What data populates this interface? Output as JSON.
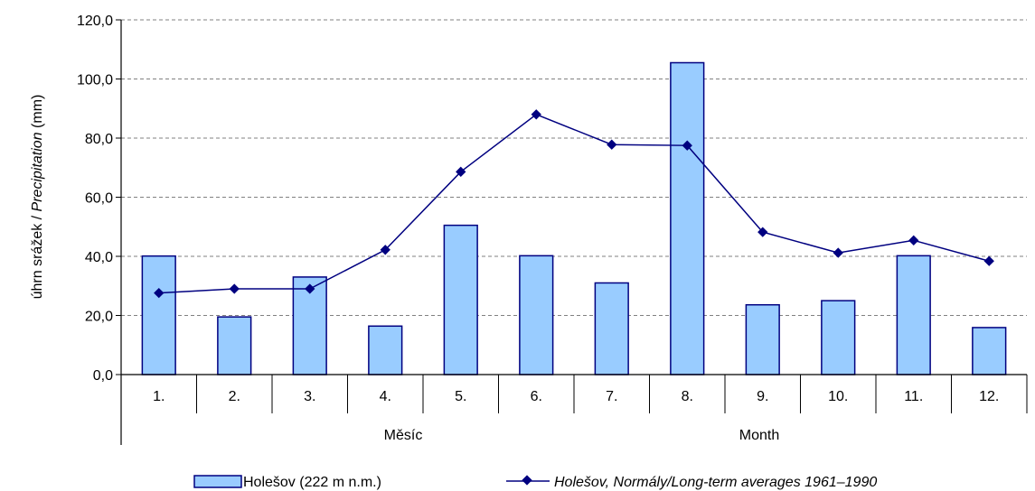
{
  "chart_data": {
    "type": "bar",
    "categories": [
      "1.",
      "2.",
      "3.",
      "4.",
      "5.",
      "6.",
      "7.",
      "8.",
      "9.",
      "10.",
      "11.",
      "12."
    ],
    "series": [
      {
        "name": "Holešov (222 m n.m.)",
        "type": "bar",
        "color": "#99ccff",
        "edge_color": "#000080",
        "values": [
          40.1,
          19.5,
          33.0,
          16.4,
          50.5,
          40.2,
          31.0,
          105.5,
          23.6,
          25.0,
          40.2,
          15.9
        ]
      },
      {
        "name": "Holešov, Normály/Long-term averages 1961–1990",
        "type": "line",
        "color": "#000080",
        "marker": "diamond",
        "values": [
          27.6,
          29.0,
          29.0,
          42.2,
          68.6,
          88.0,
          77.8,
          77.5,
          48.2,
          41.2,
          45.4,
          38.4
        ]
      }
    ],
    "yticks": [
      "0,0",
      "20,0",
      "40,0",
      "60,0",
      "80,0",
      "100,0",
      "120,0"
    ],
    "ylim": [
      0,
      120
    ],
    "ylabel_plain": "úhrn srážek / ",
    "ylabel_italic": "Precipitation",
    "ylabel_unit": " (mm)",
    "xlabel_cz": "Měsíc",
    "xlabel_en": "Month",
    "legend_series1": "Holešov (222 m n.m.)",
    "legend_series2": "Holešov, Normály/Long-term averages 1961–1990",
    "grid": true,
    "legend_position": "bottom"
  }
}
